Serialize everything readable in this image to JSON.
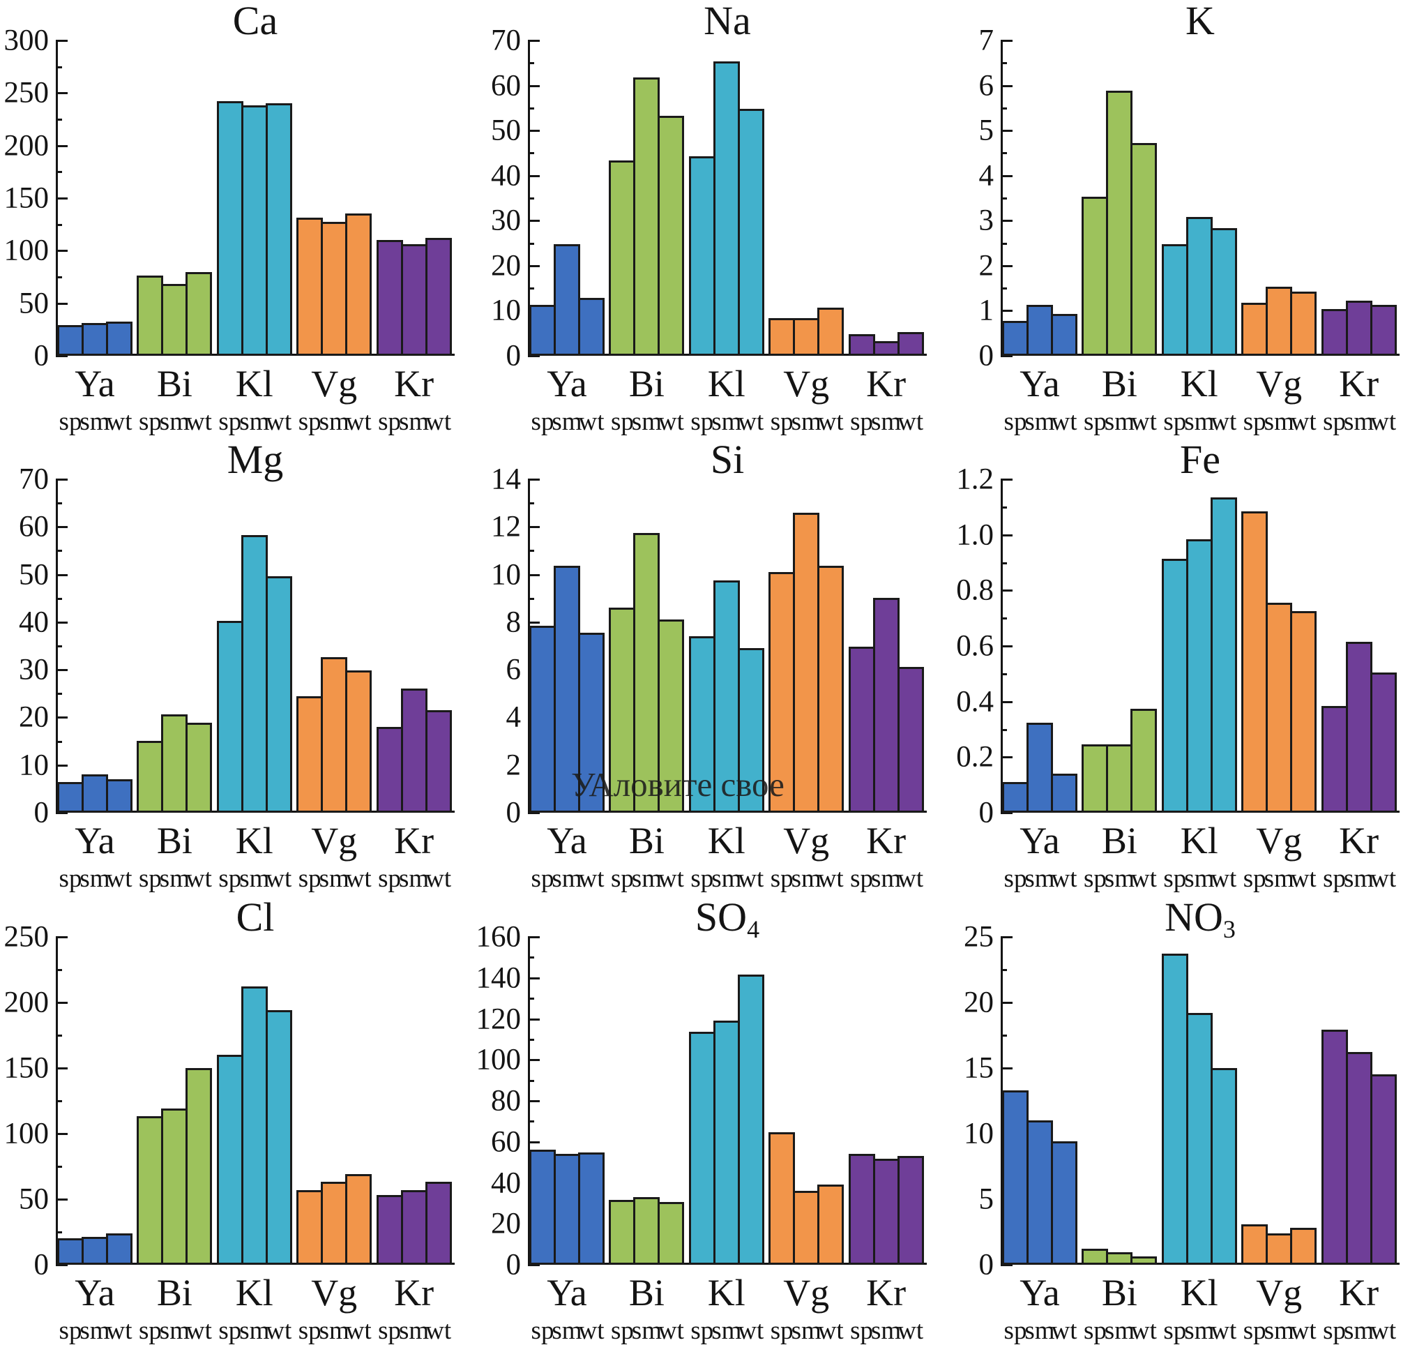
{
  "watermark": {
    "text": "УАловите свое",
    "chart": "Si"
  },
  "groups": [
    "Ya",
    "Bi",
    "Kl",
    "Vg",
    "Kr"
  ],
  "subgroups": [
    "sp",
    "sm",
    "wt"
  ],
  "colors": [
    "#3E70C0",
    "#9DC25C",
    "#42B1CC",
    "#F2954A",
    "#6F3E98"
  ],
  "bar_edge_color": "#1a1a1a",
  "chart_data": [
    {
      "type": "bar",
      "title_main": "Ca",
      "title_sub": "",
      "ylim": [
        0,
        300
      ],
      "tick_step": 50,
      "minor_step": 25,
      "tick_decimals": 0,
      "categories": [
        "Ya",
        "Bi",
        "Kl",
        "Vg",
        "Kr"
      ],
      "series": [
        {
          "name": "sp",
          "values": [
            28,
            75,
            241,
            130,
            109
          ]
        },
        {
          "name": "sm",
          "values": [
            30,
            67,
            237,
            126,
            105
          ]
        },
        {
          "name": "wt",
          "values": [
            31,
            78,
            239,
            134,
            111
          ]
        }
      ],
      "values_by_group": [
        [
          28,
          30,
          31
        ],
        [
          75,
          67,
          78
        ],
        [
          241,
          237,
          239
        ],
        [
          130,
          126,
          134
        ],
        [
          109,
          105,
          111
        ]
      ]
    },
    {
      "type": "bar",
      "title_main": "Na",
      "title_sub": "",
      "ylim": [
        0,
        70
      ],
      "tick_step": 10,
      "minor_step": 5,
      "tick_decimals": 0,
      "categories": [
        "Ya",
        "Bi",
        "Kl",
        "Vg",
        "Kr"
      ],
      "series": [
        {
          "name": "sp",
          "values": [
            11,
            43,
            44,
            8,
            4.5
          ]
        },
        {
          "name": "sm",
          "values": [
            24.5,
            61.5,
            65,
            8,
            3
          ]
        },
        {
          "name": "wt",
          "values": [
            12.5,
            53,
            54.5,
            10.3,
            5
          ]
        }
      ],
      "values_by_group": [
        [
          11,
          24.5,
          12.5
        ],
        [
          43,
          61.5,
          53
        ],
        [
          44,
          65,
          54.5
        ],
        [
          8,
          8,
          10.3
        ],
        [
          4.5,
          3,
          5
        ]
      ]
    },
    {
      "type": "bar",
      "title_main": "K",
      "title_sub": "",
      "ylim": [
        0,
        7
      ],
      "tick_step": 1,
      "minor_step": 0.5,
      "tick_decimals": 0,
      "categories": [
        "Ya",
        "Bi",
        "Kl",
        "Vg",
        "Kr"
      ],
      "series": [
        {
          "name": "sp",
          "values": [
            0.75,
            3.5,
            2.45,
            1.15,
            1.0
          ]
        },
        {
          "name": "sm",
          "values": [
            1.1,
            5.85,
            3.05,
            1.5,
            1.2
          ]
        },
        {
          "name": "wt",
          "values": [
            0.9,
            4.7,
            2.8,
            1.4,
            1.1
          ]
        }
      ],
      "values_by_group": [
        [
          0.75,
          1.1,
          0.9
        ],
        [
          3.5,
          5.85,
          4.7
        ],
        [
          2.45,
          3.05,
          2.8
        ],
        [
          1.15,
          1.5,
          1.4
        ],
        [
          1.0,
          1.2,
          1.1
        ]
      ]
    },
    {
      "type": "bar",
      "title_main": "Mg",
      "title_sub": "",
      "ylim": [
        0,
        70
      ],
      "tick_step": 10,
      "minor_step": 5,
      "tick_decimals": 0,
      "categories": [
        "Ya",
        "Bi",
        "Kl",
        "Vg",
        "Kr"
      ],
      "series": [
        {
          "name": "sp",
          "values": [
            6.2,
            14.8,
            40,
            24.2,
            17.7
          ]
        },
        {
          "name": "sm",
          "values": [
            7.8,
            20.3,
            58,
            32.3,
            25.8
          ]
        },
        {
          "name": "wt",
          "values": [
            6.8,
            18.6,
            49.3,
            29.6,
            21.2
          ]
        }
      ],
      "values_by_group": [
        [
          6.2,
          7.8,
          6.8
        ],
        [
          14.8,
          20.3,
          18.6
        ],
        [
          40,
          58,
          49.3
        ],
        [
          24.2,
          32.3,
          29.6
        ],
        [
          17.7,
          25.8,
          21.2
        ]
      ]
    },
    {
      "type": "bar",
      "title_main": "Si",
      "title_sub": "",
      "ylim": [
        0,
        14
      ],
      "tick_step": 2,
      "minor_step": 1,
      "tick_decimals": 0,
      "categories": [
        "Ya",
        "Bi",
        "Kl",
        "Vg",
        "Kr"
      ],
      "series": [
        {
          "name": "sp",
          "values": [
            7.8,
            8.55,
            7.35,
            10.05,
            6.9
          ]
        },
        {
          "name": "sm",
          "values": [
            10.3,
            11.7,
            9.7,
            12.55,
            8.95
          ]
        },
        {
          "name": "wt",
          "values": [
            7.5,
            8.05,
            6.85,
            10.3,
            6.05
          ]
        }
      ],
      "values_by_group": [
        [
          7.8,
          10.3,
          7.5
        ],
        [
          8.55,
          11.7,
          8.05
        ],
        [
          7.35,
          9.7,
          6.85
        ],
        [
          10.05,
          12.55,
          10.3
        ],
        [
          6.9,
          8.95,
          6.05
        ]
      ]
    },
    {
      "type": "bar",
      "title_main": "Fe",
      "title_sub": "",
      "ylim": [
        0,
        1.2
      ],
      "tick_step": 0.2,
      "minor_step": 0.1,
      "tick_decimals": 1,
      "categories": [
        "Ya",
        "Bi",
        "Kl",
        "Vg",
        "Kr"
      ],
      "series": [
        {
          "name": "sp",
          "values": [
            0.105,
            0.24,
            0.91,
            1.08,
            0.38
          ]
        },
        {
          "name": "sm",
          "values": [
            0.32,
            0.24,
            0.98,
            0.75,
            0.61
          ]
        },
        {
          "name": "wt",
          "values": [
            0.135,
            0.37,
            1.13,
            0.72,
            0.5
          ]
        }
      ],
      "values_by_group": [
        [
          0.105,
          0.32,
          0.135
        ],
        [
          0.24,
          0.24,
          0.37
        ],
        [
          0.91,
          0.98,
          1.13
        ],
        [
          1.08,
          0.75,
          0.72
        ],
        [
          0.38,
          0.61,
          0.5
        ]
      ]
    },
    {
      "type": "bar",
      "title_main": "Cl",
      "title_sub": "",
      "ylim": [
        0,
        250
      ],
      "tick_step": 50,
      "minor_step": 25,
      "tick_decimals": 0,
      "categories": [
        "Ya",
        "Bi",
        "Kl",
        "Vg",
        "Kr"
      ],
      "series": [
        {
          "name": "sp",
          "values": [
            19,
            112,
            159,
            56,
            52
          ]
        },
        {
          "name": "sm",
          "values": [
            20,
            118,
            211,
            62,
            56
          ]
        },
        {
          "name": "wt",
          "values": [
            23,
            149,
            193,
            68,
            62
          ]
        }
      ],
      "values_by_group": [
        [
          19,
          20,
          23
        ],
        [
          112,
          118,
          149
        ],
        [
          159,
          211,
          193
        ],
        [
          56,
          62,
          68
        ],
        [
          52,
          56,
          62
        ]
      ]
    },
    {
      "type": "bar",
      "title_main": "SO",
      "title_sub": "4",
      "ylim": [
        0,
        160
      ],
      "tick_step": 20,
      "minor_step": 10,
      "tick_decimals": 0,
      "categories": [
        "Ya",
        "Bi",
        "Kl",
        "Vg",
        "Kr"
      ],
      "series": [
        {
          "name": "sp",
          "values": [
            55.5,
            31,
            113,
            64,
            53.5
          ]
        },
        {
          "name": "sm",
          "values": [
            53.5,
            32.5,
            118.5,
            35.5,
            51
          ]
        },
        {
          "name": "wt",
          "values": [
            54,
            30,
            141,
            38.5,
            52.5
          ]
        }
      ],
      "values_by_group": [
        [
          55.5,
          53.5,
          54
        ],
        [
          31,
          32.5,
          30
        ],
        [
          113,
          118.5,
          141
        ],
        [
          64,
          35.5,
          38.5
        ],
        [
          53.5,
          51,
          52.5
        ]
      ]
    },
    {
      "type": "bar",
      "title_main": "NO",
      "title_sub": "3",
      "ylim": [
        0,
        25
      ],
      "tick_step": 5,
      "minor_step": 2.5,
      "tick_decimals": 0,
      "categories": [
        "Ya",
        "Bi",
        "Kl",
        "Vg",
        "Kr"
      ],
      "series": [
        {
          "name": "sp",
          "values": [
            13.2,
            1.1,
            23.6,
            3.0,
            17.8
          ]
        },
        {
          "name": "sm",
          "values": [
            10.9,
            0.85,
            19.1,
            2.3,
            16.1
          ]
        },
        {
          "name": "wt",
          "values": [
            9.3,
            0.55,
            14.9,
            2.7,
            14.4
          ]
        }
      ],
      "values_by_group": [
        [
          13.2,
          10.9,
          9.3
        ],
        [
          1.1,
          0.85,
          0.55
        ],
        [
          23.6,
          19.1,
          14.9
        ],
        [
          3.0,
          2.3,
          2.7
        ],
        [
          17.8,
          16.1,
          14.4
        ]
      ]
    }
  ]
}
